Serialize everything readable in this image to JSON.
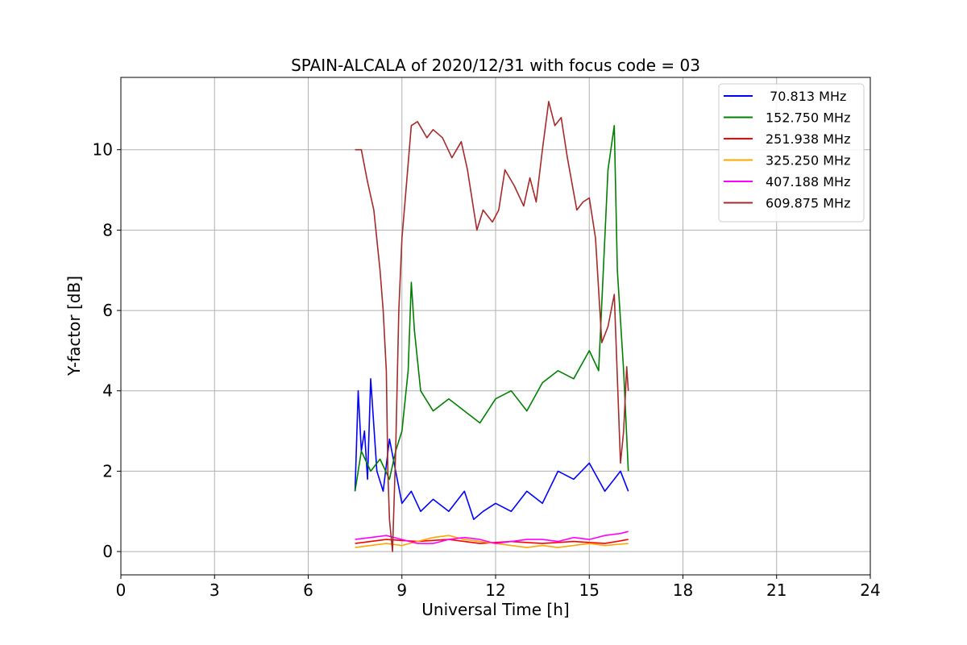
{
  "chart_data": {
    "type": "line",
    "title": "SPAIN-ALCALA of 2020/12/31 with focus code = 03",
    "xlabel": "Universal Time [h]",
    "ylabel": "Y-factor [dB]",
    "xlim": [
      0,
      24
    ],
    "ylim": [
      -0.58,
      11.8
    ],
    "xticks": [
      0,
      3,
      6,
      9,
      12,
      15,
      18,
      21,
      24
    ],
    "yticks": [
      0,
      2,
      4,
      6,
      8,
      10
    ],
    "xtick_labels": [
      "0",
      "3",
      "6",
      "9",
      "12",
      "15",
      "18",
      "21",
      "24"
    ],
    "ytick_labels": [
      "0",
      "2",
      "4",
      "6",
      "8",
      "10"
    ],
    "grid": true,
    "legend_position": "top-right",
    "series": [
      {
        "name": " 70.813 MHz",
        "color": "#0000ff",
        "x": [
          7.5,
          7.6,
          7.7,
          7.8,
          7.9,
          8.0,
          8.2,
          8.4,
          8.6,
          8.8,
          9.0,
          9.3,
          9.6,
          10.0,
          10.5,
          11.0,
          11.3,
          11.6,
          12.0,
          12.5,
          13.0,
          13.5,
          14.0,
          14.5,
          15.0,
          15.5,
          16.0,
          16.25
        ],
        "y": [
          1.5,
          4.0,
          2.5,
          3.0,
          1.8,
          4.3,
          2.0,
          1.5,
          2.8,
          2.0,
          1.2,
          1.5,
          1.0,
          1.3,
          1.0,
          1.5,
          0.8,
          1.0,
          1.2,
          1.0,
          1.5,
          1.2,
          2.0,
          1.8,
          2.2,
          1.5,
          2.0,
          1.5
        ]
      },
      {
        "name": "152.750 MHz",
        "color": "#008000",
        "x": [
          7.5,
          7.7,
          8.0,
          8.3,
          8.6,
          8.8,
          9.0,
          9.2,
          9.3,
          9.4,
          9.6,
          10.0,
          10.5,
          11.0,
          11.5,
          12.0,
          12.5,
          13.0,
          13.5,
          14.0,
          14.5,
          15.0,
          15.3,
          15.6,
          15.8,
          15.9,
          16.1,
          16.25
        ],
        "y": [
          1.5,
          2.5,
          2.0,
          2.3,
          1.8,
          2.5,
          3.0,
          4.5,
          6.7,
          5.5,
          4.0,
          3.5,
          3.8,
          3.5,
          3.2,
          3.8,
          4.0,
          3.5,
          4.2,
          4.5,
          4.3,
          5.0,
          4.5,
          9.5,
          10.6,
          7.0,
          4.5,
          2.0
        ]
      },
      {
        "name": "251.938 MHz",
        "color": "#ff0000",
        "x": [
          7.5,
          8.5,
          9.5,
          10.5,
          11.5,
          12.5,
          13.5,
          14.5,
          15.5,
          16.25
        ],
        "y": [
          0.2,
          0.3,
          0.25,
          0.3,
          0.2,
          0.25,
          0.2,
          0.25,
          0.2,
          0.3
        ]
      },
      {
        "name": "325.250 MHz",
        "color": "#ffa500",
        "x": [
          7.5,
          8.0,
          8.5,
          9.0,
          9.5,
          10.0,
          10.5,
          11.0,
          11.5,
          12.0,
          12.5,
          13.0,
          13.5,
          14.0,
          14.5,
          15.0,
          15.5,
          16.25
        ],
        "y": [
          0.1,
          0.15,
          0.2,
          0.15,
          0.25,
          0.35,
          0.4,
          0.3,
          0.25,
          0.2,
          0.15,
          0.1,
          0.15,
          0.1,
          0.15,
          0.2,
          0.15,
          0.2
        ]
      },
      {
        "name": "407.188 MHz",
        "color": "#ff00ff",
        "x": [
          7.5,
          8.0,
          8.5,
          9.0,
          9.5,
          10.0,
          10.5,
          11.0,
          11.5,
          12.0,
          12.5,
          13.0,
          13.5,
          14.0,
          14.5,
          15.0,
          15.5,
          16.0,
          16.25
        ],
        "y": [
          0.3,
          0.35,
          0.4,
          0.3,
          0.2,
          0.2,
          0.3,
          0.35,
          0.3,
          0.2,
          0.25,
          0.3,
          0.3,
          0.25,
          0.35,
          0.3,
          0.4,
          0.45,
          0.5
        ]
      },
      {
        "name": "609.875 MHz",
        "color": "#a52a2a",
        "x": [
          7.5,
          7.7,
          7.9,
          8.1,
          8.3,
          8.4,
          8.5,
          8.55,
          8.6,
          8.7,
          8.8,
          8.9,
          9.0,
          9.1,
          9.3,
          9.5,
          9.8,
          10.0,
          10.3,
          10.6,
          10.9,
          11.1,
          11.4,
          11.6,
          11.9,
          12.1,
          12.3,
          12.6,
          12.9,
          13.1,
          13.3,
          13.5,
          13.7,
          13.9,
          14.1,
          14.3,
          14.6,
          14.8,
          15.0,
          15.2,
          15.4,
          15.6,
          15.8,
          16.0,
          16.1,
          16.2,
          16.25
        ],
        "y": [
          10.0,
          10.0,
          9.2,
          8.5,
          7.0,
          6.0,
          4.5,
          2.0,
          0.8,
          0.0,
          2.5,
          6.0,
          7.8,
          8.7,
          10.6,
          10.7,
          10.3,
          10.5,
          10.3,
          9.8,
          10.2,
          9.5,
          8.0,
          8.5,
          8.2,
          8.5,
          9.5,
          9.1,
          8.6,
          9.3,
          8.7,
          10.0,
          11.2,
          10.6,
          10.8,
          9.8,
          8.5,
          8.7,
          8.8,
          7.8,
          5.2,
          5.6,
          6.4,
          2.2,
          3.0,
          4.6,
          4.0
        ]
      }
    ]
  }
}
